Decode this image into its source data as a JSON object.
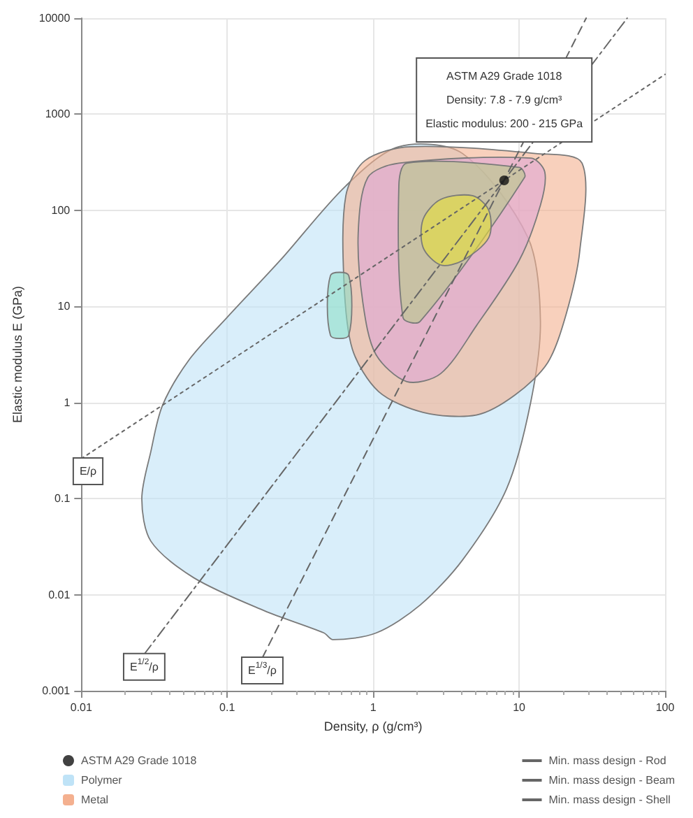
{
  "chart_data": {
    "type": "area",
    "xlabel": "Density, ρ (g/cm³)",
    "ylabel": "Elastic modulus E (GPa)",
    "xlim": [
      0.01,
      100
    ],
    "ylim": [
      0.001,
      10000
    ],
    "xticks": [
      0.01,
      0.1,
      1,
      10,
      100
    ],
    "yticks": [
      0.001,
      0.01,
      0.1,
      1,
      10,
      100,
      1000,
      10000
    ],
    "log": "xy",
    "grid": true,
    "legend": "bottom",
    "annotations": [
      "ASTM A29 Grade 1018\nDensity: 7.8 - 7.9 g/cm³\nElastic modulus: 200 - 215 GPa",
      {
        "text": "E/ρ",
        "x": 0.01,
        "y": 0.26
      },
      {
        "text": "E$^{1/2}$/ρ",
        "x": 0.027,
        "y": 0.0024
      },
      {
        "text": "E$^{1/3}$/ρ",
        "x": 0.174,
        "y": 0.0022
      }
    ],
    "series": [
      {
        "name": "ASTM A29 Grade 1018",
        "type": "scatter",
        "color": "#111111",
        "marker": "circle",
        "x": [
          7.9
        ],
        "values": [
          205
        ]
      },
      {
        "name": "Polymer",
        "color": "#bfe3f7",
        "x": [
          0.65,
          0.23,
          0.1,
          0.055,
          0.036,
          0.03,
          0.026,
          0.03,
          0.059,
          0.18,
          0.46,
          0.53,
          1.05,
          2.1,
          4.1,
          8.2,
          12,
          14,
          11.5,
          4.1,
          1.5
        ],
        "values": [
          180,
          30,
          7.7,
          2.8,
          0.93,
          0.31,
          0.1,
          0.036,
          0.015,
          0.0068,
          0.004,
          0.0034,
          0.004,
          0.0078,
          0.023,
          0.126,
          1,
          7,
          52,
          390,
          460
        ]
      },
      {
        "name": "Metal",
        "color": "#f4b08f",
        "x": [
          0.65,
          0.63,
          0.72,
          1.09,
          2.2,
          5.1,
          9.4,
          15.7,
          21,
          26,
          27,
          13,
          1.8,
          0.88
        ],
        "values": [
          142,
          19,
          3.6,
          1.3,
          0.79,
          0.74,
          1.2,
          2.6,
          8.3,
          37,
          310,
          390,
          460,
          330
        ]
      },
      {
        "color": "#dfa6d6",
        "x": [
          0.92,
          0.79,
          0.85,
          1.04,
          1.7,
          2.9,
          5.1,
          10,
          14,
          15,
          12,
          1.5
        ],
        "values": [
          220,
          58,
          11,
          3.2,
          1.65,
          2,
          6.3,
          30,
          113,
          250,
          350,
          310
        ]
      },
      {
        "color": "#b6c98a",
        "x": [
          1.6,
          1.5,
          1.7,
          10,
          10.9,
          2.1
        ],
        "values": [
          7.7,
          180,
          310,
          280,
          220,
          7
        ]
      },
      {
        "color": "#e6e03a",
        "x": [
          2.2,
          2.9,
          4.8,
          6.2,
          6.2,
          4.1,
          2.9,
          2.2
        ],
        "values": [
          81,
          130,
          142,
          100,
          52,
          30,
          27,
          41
        ]
      },
      {
        "color": "#8ee0c8",
        "x": [
          0.51,
          0.68,
          0.68,
          0.51
        ],
        "values": [
          21,
          21,
          5,
          5
        ]
      },
      {
        "name": "Min. mass design - Rod",
        "type": "line",
        "color": "#666666",
        "line_style": "dotted",
        "x": [
          0.01,
          100
        ],
        "values": [
          0.26,
          2600
        ]
      },
      {
        "name": "Min. mass design - Beam",
        "type": "line",
        "color": "#666666",
        "line_style": "dashdot",
        "x": [
          0.027,
          55
        ],
        "values": [
          0.0024,
          10000
        ]
      },
      {
        "name": "Min. mass design - Shell",
        "type": "line",
        "color": "#666666",
        "line_style": "dashed",
        "x": [
          0.174,
          28.8
        ],
        "values": [
          0.0022,
          10000
        ]
      }
    ]
  }
}
